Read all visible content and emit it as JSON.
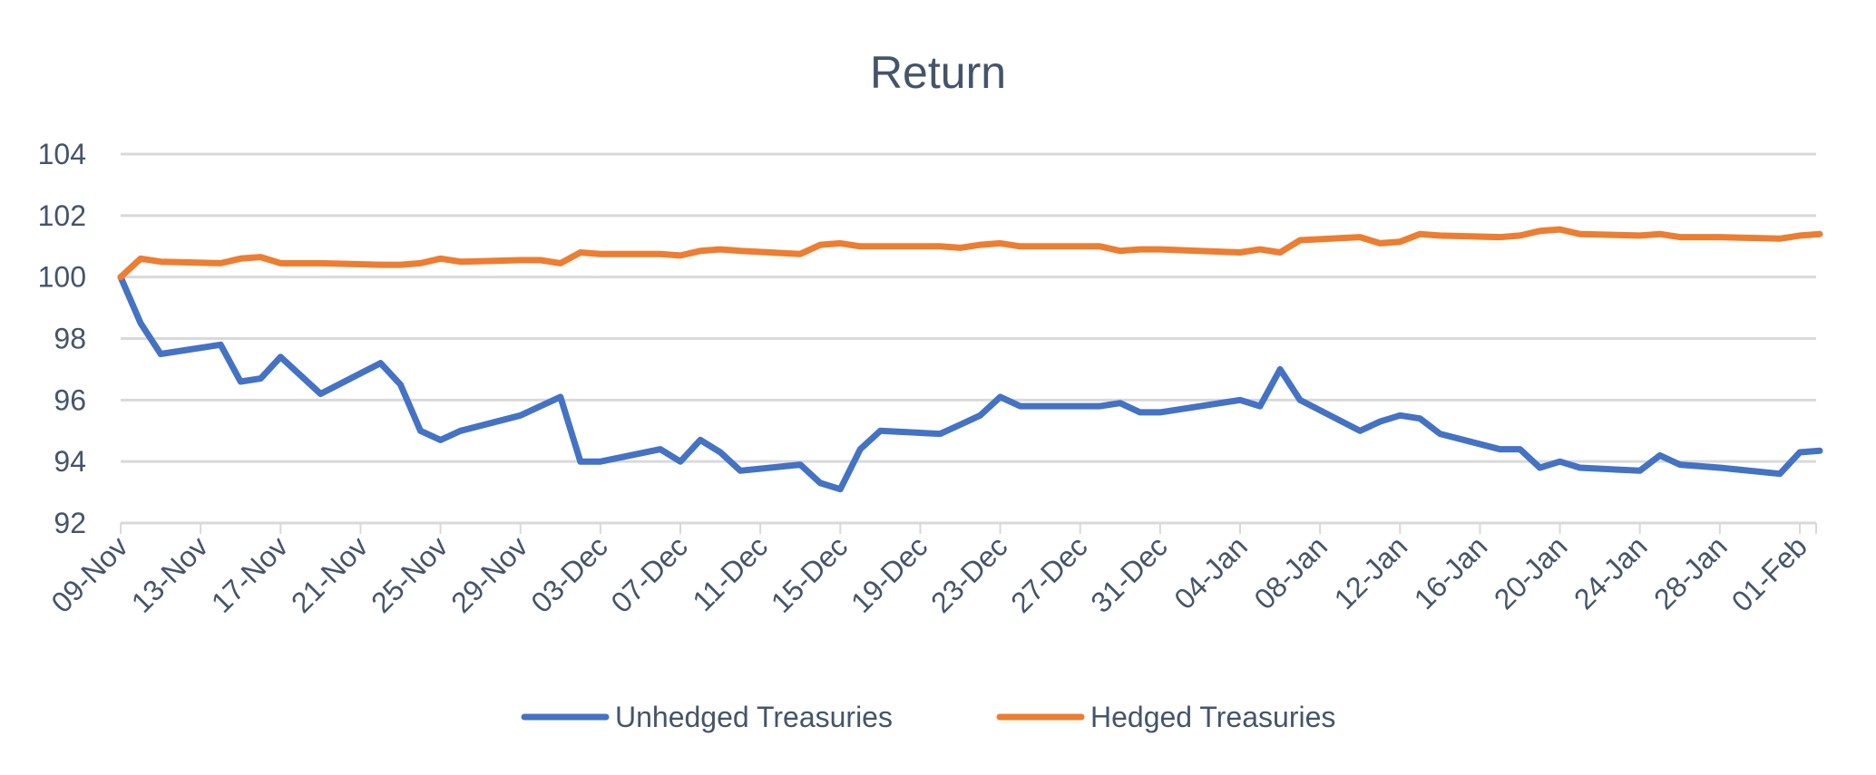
{
  "chart_data": {
    "type": "line",
    "title": "Return",
    "xlabel": "",
    "ylabel": "",
    "ylim": [
      92,
      104
    ],
    "yticks": [
      "92",
      "94",
      "96",
      "98",
      "100",
      "102",
      "104"
    ],
    "xtick_labels": [
      "09-Nov",
      "13-Nov",
      "17-Nov",
      "21-Nov",
      "25-Nov",
      "29-Nov",
      "03-Dec",
      "07-Dec",
      "11-Dec",
      "15-Dec",
      "19-Dec",
      "23-Dec",
      "27-Dec",
      "31-Dec",
      "04-Jan",
      "08-Jan",
      "12-Jan",
      "16-Jan",
      "20-Jan",
      "24-Jan",
      "28-Jan",
      "01-Feb"
    ],
    "grid": true,
    "legend_position": "bottom",
    "x": [
      "09-Nov",
      "10-Nov",
      "11-Nov",
      "14-Nov",
      "15-Nov",
      "16-Nov",
      "17-Nov",
      "19-Nov",
      "22-Nov",
      "23-Nov",
      "24-Nov",
      "25-Nov",
      "26-Nov",
      "29-Nov",
      "30-Nov",
      "01-Dec",
      "02-Dec",
      "03-Dec",
      "06-Dec",
      "07-Dec",
      "08-Dec",
      "09-Dec",
      "10-Dec",
      "13-Dec",
      "14-Dec",
      "15-Dec",
      "16-Dec",
      "17-Dec",
      "20-Dec",
      "21-Dec",
      "22-Dec",
      "23-Dec",
      "24-Dec",
      "28-Dec",
      "29-Dec",
      "30-Dec",
      "31-Dec",
      "04-Jan",
      "05-Jan",
      "06-Jan",
      "07-Jan",
      "10-Jan",
      "11-Jan",
      "12-Jan",
      "13-Jan",
      "14-Jan",
      "17-Jan",
      "18-Jan",
      "19-Jan",
      "20-Jan",
      "21-Jan",
      "24-Jan",
      "25-Jan",
      "26-Jan",
      "28-Jan",
      "31-Jan",
      "01-Feb",
      "02-Feb"
    ],
    "series": [
      {
        "name": "Unhedged Treasuries",
        "color": "#4472c4",
        "values": [
          100,
          98.5,
          97.5,
          97.8,
          96.6,
          96.7,
          97.4,
          96.2,
          97.2,
          96.5,
          95.0,
          94.7,
          95.0,
          95.5,
          95.8,
          96.1,
          94.0,
          94.0,
          94.4,
          94.0,
          94.7,
          94.3,
          93.7,
          93.9,
          93.3,
          93.1,
          94.4,
          95.0,
          94.9,
          95.2,
          95.5,
          96.1,
          95.8,
          95.8,
          95.9,
          95.6,
          95.6,
          96.0,
          95.8,
          97.0,
          96.0,
          95.0,
          95.3,
          95.5,
          95.4,
          94.9,
          94.4,
          94.4,
          93.8,
          94.0,
          93.8,
          93.7,
          94.2,
          93.9,
          93.8,
          93.6,
          94.3,
          94.35
        ]
      },
      {
        "name": "Hedged Treasuries",
        "color": "#ed7d31",
        "values": [
          100,
          100.6,
          100.5,
          100.45,
          100.6,
          100.65,
          100.45,
          100.45,
          100.4,
          100.4,
          100.45,
          100.6,
          100.5,
          100.55,
          100.55,
          100.45,
          100.8,
          100.75,
          100.75,
          100.7,
          100.85,
          100.9,
          100.85,
          100.75,
          101.05,
          101.1,
          101.0,
          101.0,
          101.0,
          100.95,
          101.05,
          101.1,
          101.0,
          101.0,
          100.85,
          100.9,
          100.9,
          100.8,
          100.9,
          100.8,
          101.2,
          101.3,
          101.1,
          101.15,
          101.4,
          101.35,
          101.3,
          101.35,
          101.5,
          101.55,
          101.4,
          101.35,
          101.4,
          101.3,
          101.3,
          101.25,
          101.35,
          101.4
        ]
      }
    ]
  }
}
